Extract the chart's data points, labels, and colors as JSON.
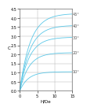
{
  "title": "",
  "xlabel": "H/De",
  "ylabel": "C",
  "xlim": [
    0,
    15
  ],
  "ylim": [
    0,
    4.5
  ],
  "xticks": [
    0,
    5,
    10,
    15
  ],
  "yticks": [
    0,
    0.5,
    1.0,
    1.5,
    2.0,
    2.5,
    3.0,
    3.5,
    4.0,
    4.5
  ],
  "line_color": "#5bc8e8",
  "angles": [
    10,
    20,
    30,
    40,
    45
  ],
  "angle_label_color": "#555555",
  "background": "#ffffff"
}
